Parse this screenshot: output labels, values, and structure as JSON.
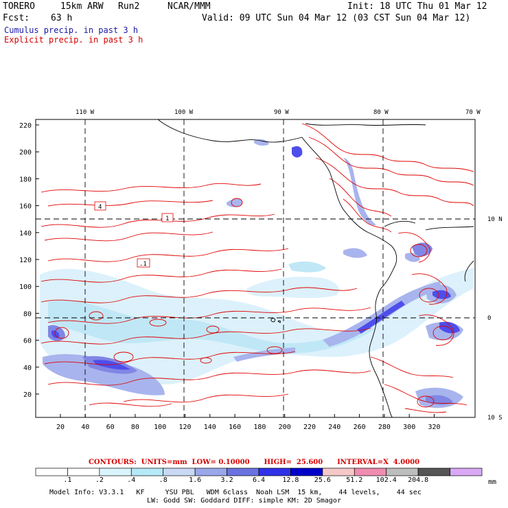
{
  "header": {
    "model": "TORERO",
    "resolution": "15km ARW",
    "run": "Run2",
    "org": "NCAR/MMM",
    "init": "Init: 18 UTC Thu 01 Mar 12",
    "fcst_label": "Fcst:",
    "fcst_value": "63 h",
    "valid": "Valid: 09 UTC Sun 04 Mar 12 (03 CST Sun 04 Mar 12)",
    "line_blue": "Cumulus precip. in past 3 h",
    "line_red": "Explicit precip. in past 3 h"
  },
  "map": {
    "top_lon_labels": [
      "110 W",
      "100 W",
      "90 W",
      "80 W",
      "70 W"
    ],
    "right_lat_labels": [
      "10 N",
      "0",
      "10 S"
    ],
    "y_ticks": [
      "220",
      "200",
      "180",
      "160",
      "140",
      "120",
      "100",
      "80",
      "60",
      "40",
      "20"
    ],
    "x_ticks": [
      "20",
      "40",
      "60",
      "80",
      "100",
      "120",
      "140",
      "160",
      "180",
      "200",
      "220",
      "240",
      "260",
      "280",
      "300",
      "320"
    ],
    "contour_labels": [
      "4",
      "1",
      ".1"
    ]
  },
  "contours_line": "CONTOURS:  UNITS=mm  LOW= 0.10000      HIGH=  25.600      INTERVAL=X  4.0000",
  "colorbar": {
    "labels": [
      ".1",
      ".2",
      ".4",
      ".8",
      "1.6",
      "3.2",
      "6.4",
      "12.8",
      "25.6",
      "51.2",
      "102.4",
      "204.8"
    ],
    "unit": "mm",
    "colors": [
      "#ffffff",
      "#ffffff",
      "#d9f4fc",
      "#b6e9f7",
      "#c9d9f4",
      "#9aa8ea",
      "#6a72e0",
      "#3030e8",
      "#0000c8",
      "#f5c8c8",
      "#f08cb0",
      "#bdbdbd",
      "#555555",
      "#d8a8f4"
    ]
  },
  "model_info": {
    "line1": "Model Info: V3.3.1   KF     YSU PBL   WDM 6class  Noah LSM  15 km,    44 levels,    44 sec",
    "line2": "LW: Godd SW: Goddard DIFF: simple KM: 2D Smagor"
  }
}
